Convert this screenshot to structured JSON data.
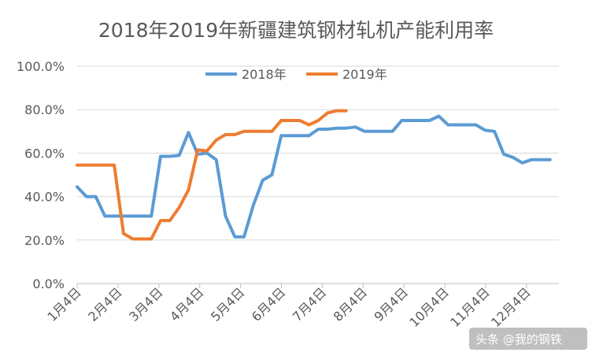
{
  "chart_data": {
    "type": "line",
    "title": "2018年2019年新疆建筑钢材轧机产能利用率",
    "xlabel": "",
    "ylabel": "",
    "ylim": [
      0,
      100
    ],
    "y_ticks": [
      "0.0%",
      "20.0%",
      "40.0%",
      "60.0%",
      "80.0%",
      "100.0%"
    ],
    "x_ticks": [
      "1月4日",
      "2月4日",
      "3月4日",
      "4月4日",
      "5月4日",
      "6月4日",
      "7月4日",
      "8月4日",
      "9月4日",
      "10月4日",
      "11月4日",
      "12月4日"
    ],
    "grid": true,
    "legend": "top-center",
    "x_unit": "week index (0 = 1月4日)",
    "series": [
      {
        "name": "2018年",
        "color": "#5b9bd5",
        "x": [
          0,
          1,
          2,
          3,
          4,
          5,
          6,
          7,
          8,
          9,
          10,
          11,
          12,
          13,
          14,
          15,
          16,
          17,
          18,
          19,
          20,
          21,
          22,
          23,
          24,
          25,
          26,
          27,
          28,
          29,
          30,
          31,
          32,
          33,
          34,
          35,
          36,
          37,
          38,
          39,
          40,
          41,
          42,
          43,
          44,
          45,
          46,
          47,
          48,
          49,
          50,
          51
        ],
        "values": [
          44.5,
          40,
          40,
          31,
          31,
          31,
          31,
          31,
          31,
          58.5,
          58.5,
          59,
          69.5,
          59.5,
          60,
          57,
          31,
          21.5,
          21.5,
          36,
          47.5,
          50,
          68,
          68,
          68,
          68,
          71,
          71,
          71.5,
          71.5,
          72,
          70,
          70,
          70,
          70,
          75,
          75,
          75,
          75,
          77,
          73,
          73,
          73,
          73,
          70.5,
          70,
          59.5,
          58,
          55.5,
          57,
          57,
          57
        ]
      },
      {
        "name": "2019年",
        "color": "#ed7d31",
        "x": [
          0,
          1,
          2,
          3,
          4,
          5,
          6,
          7,
          8,
          9,
          10,
          11,
          12,
          13,
          14,
          15,
          16,
          17,
          18,
          19,
          20,
          21,
          22,
          23,
          24,
          25,
          26,
          27,
          28,
          29
        ],
        "values": [
          54.5,
          54.5,
          54.5,
          54.5,
          54.5,
          23,
          20.5,
          20.5,
          20.5,
          29,
          29,
          35,
          43,
          61.5,
          61,
          66,
          68.5,
          68.5,
          70,
          70,
          70,
          70,
          75,
          75,
          75,
          73,
          75,
          78.5,
          79.5,
          79.5
        ]
      }
    ]
  },
  "watermark": "头条 @我的钢铁"
}
